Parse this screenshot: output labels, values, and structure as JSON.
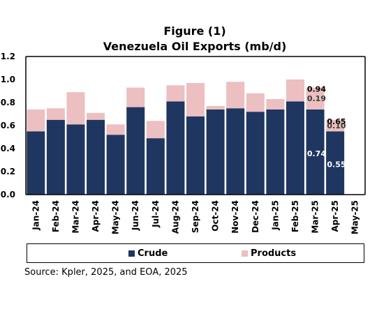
{
  "chart_data": {
    "type": "bar",
    "stacked": true,
    "title": "Figure (1)",
    "subtitle": "Venezuela Oil Exports (mb/d)",
    "categories": [
      "Jan-24",
      "Feb-24",
      "Mar-24",
      "Apr-24",
      "May-24",
      "Jun-24",
      "Jul-24",
      "Aug-24",
      "Sep-24",
      "Oct-24",
      "Nov-24",
      "Dec-24",
      "Jan-25",
      "Feb-25",
      "Mar-25",
      "Apr-25",
      "May-25"
    ],
    "series": [
      {
        "name": "Crude",
        "color": "#1f3660",
        "values": [
          0.55,
          0.65,
          0.61,
          0.65,
          0.52,
          0.76,
          0.49,
          0.81,
          0.68,
          0.74,
          0.75,
          0.72,
          0.74,
          0.81,
          0.74,
          0.55,
          null
        ]
      },
      {
        "name": "Products",
        "color": "#ecbfc0",
        "values": [
          0.19,
          0.1,
          0.28,
          0.06,
          0.09,
          0.17,
          0.15,
          0.14,
          0.29,
          0.03,
          0.23,
          0.16,
          0.09,
          0.19,
          0.19,
          0.1,
          null
        ]
      }
    ],
    "data_labels": {
      "Mar-25": {
        "total": "0.94",
        "products": "0.19",
        "crude": "0.74"
      },
      "Apr-25": {
        "total": "0.65",
        "products": "0.10",
        "crude": "0.55"
      }
    },
    "yticks": [
      "0.0",
      "0.2",
      "0.4",
      "0.6",
      "0.8",
      "1.0",
      "1.2"
    ],
    "ylim": [
      0,
      1.2
    ],
    "grid": false,
    "legend_position": "bottom"
  },
  "source": "Source: Kpler, 2025, and EOA, 2025"
}
